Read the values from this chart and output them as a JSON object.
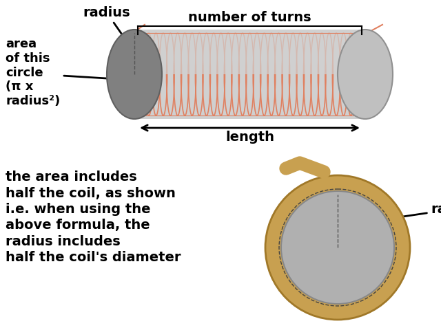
{
  "bg_color": "#ffffff",
  "coil_body_color": "#d0d0d0",
  "coil_right_cap_color": "#c0c0c0",
  "coil_left_cap_color": "#808080",
  "wire_color": "#f0a888",
  "wire_edge_color": "#e08060",
  "toroid_outer_color": "#c8a050",
  "toroid_outer_edge": "#a07828",
  "toroid_inner_color": "#b0b0b0",
  "toroid_inner_edge": "#909090",
  "text_color": "#000000",
  "dashed_color": "#555555",
  "label_radius": "radius",
  "label_turns": "number of turns",
  "label_area": "area\nof this\ncircle\n(π x\nradius²)",
  "label_length": "length",
  "label_radius2": "radius",
  "label_desc": "the area includes\nhalf the coil, as shown\ni.e. when using the\nabove formula, the\nradius includes\nhalf the coil's diameter",
  "fontsize_main": 14,
  "n_turns": 32
}
